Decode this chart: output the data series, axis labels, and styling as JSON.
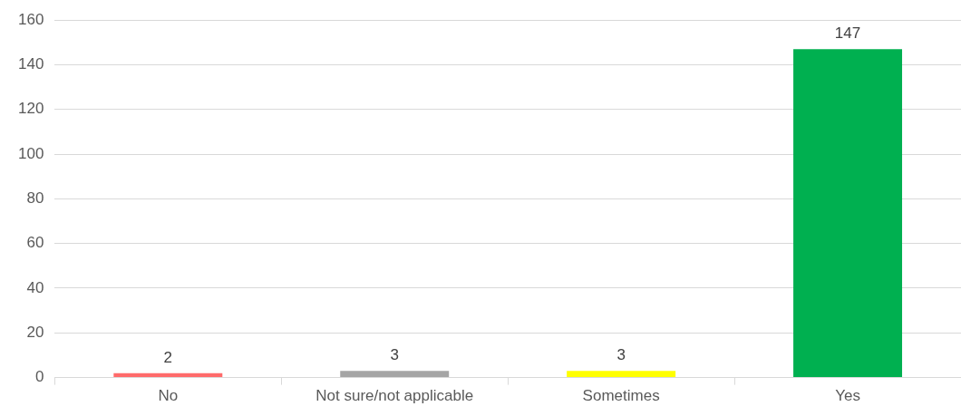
{
  "chart_data": {
    "type": "bar",
    "categories": [
      "No",
      "Not sure/not applicable",
      "Sometimes",
      "Yes"
    ],
    "values": [
      2,
      3,
      3,
      147
    ],
    "colors": [
      "#ff6b6b",
      "#a5a5a5",
      "#ffff00",
      "#00b050"
    ],
    "ylim": [
      0,
      160
    ],
    "yticks": [
      0,
      20,
      40,
      60,
      80,
      100,
      120,
      140,
      160
    ],
    "grid": "y",
    "data_labels": true
  }
}
